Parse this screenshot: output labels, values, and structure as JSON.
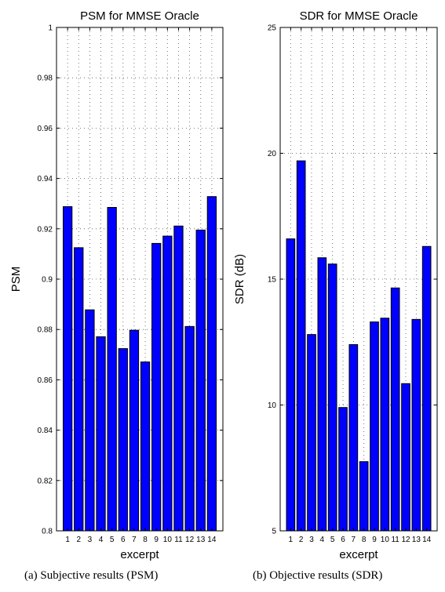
{
  "charts": [
    {
      "caption": "(a) Subjective results (PSM)",
      "chart_data": {
        "type": "bar",
        "title": "PSM for MMSE Oracle",
        "xlabel": "excerpt",
        "ylabel": "PSM",
        "categories": [
          "1",
          "2",
          "3",
          "4",
          "5",
          "6",
          "7",
          "8",
          "9",
          "10",
          "11",
          "12",
          "13",
          "14"
        ],
        "values": [
          0.9288,
          0.9125,
          0.8878,
          0.8771,
          0.9285,
          0.8724,
          0.8797,
          0.8671,
          0.9142,
          0.9171,
          0.9211,
          0.8812,
          0.9195,
          0.9328
        ],
        "ylim": [
          0.8,
          1.0
        ],
        "yticks": [
          0.8,
          0.82,
          0.84,
          0.86,
          0.88,
          0.9,
          0.92,
          0.94,
          0.96,
          0.98,
          1
        ],
        "ytick_labels": [
          "0.8",
          "0.82",
          "0.84",
          "0.86",
          "0.88",
          "0.9",
          "0.92",
          "0.94",
          "0.96",
          "0.98",
          "1"
        ],
        "grid": true,
        "bar_color": "#0000ff"
      }
    },
    {
      "caption": "(b) Objective results (SDR)",
      "chart_data": {
        "type": "bar",
        "title": "SDR for MMSE Oracle",
        "xlabel": "excerpt",
        "ylabel": "SDR (dB)",
        "categories": [
          "1",
          "2",
          "3",
          "4",
          "5",
          "6",
          "7",
          "8",
          "9",
          "10",
          "11",
          "12",
          "13",
          "14"
        ],
        "values": [
          16.6,
          19.7,
          12.8,
          15.85,
          15.6,
          9.9,
          12.4,
          7.75,
          13.3,
          13.45,
          14.65,
          10.85,
          13.4,
          16.3
        ],
        "ylim": [
          5,
          25
        ],
        "yticks": [
          5,
          10,
          15,
          20,
          25
        ],
        "ytick_labels": [
          "5",
          "10",
          "15",
          "20",
          "25"
        ],
        "grid": true,
        "bar_color": "#0000ff"
      }
    }
  ]
}
